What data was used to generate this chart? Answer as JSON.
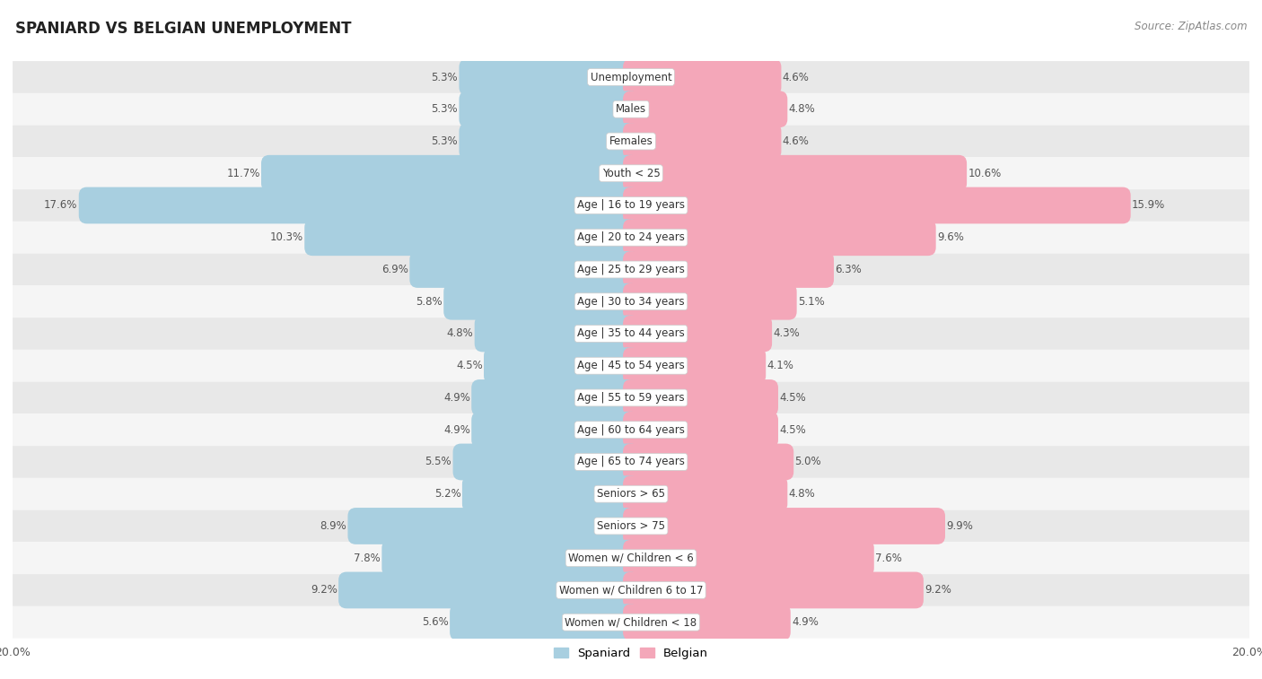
{
  "title": "SPANIARD VS BELGIAN UNEMPLOYMENT",
  "source": "Source: ZipAtlas.com",
  "categories": [
    "Unemployment",
    "Males",
    "Females",
    "Youth < 25",
    "Age | 16 to 19 years",
    "Age | 20 to 24 years",
    "Age | 25 to 29 years",
    "Age | 30 to 34 years",
    "Age | 35 to 44 years",
    "Age | 45 to 54 years",
    "Age | 55 to 59 years",
    "Age | 60 to 64 years",
    "Age | 65 to 74 years",
    "Seniors > 65",
    "Seniors > 75",
    "Women w/ Children < 6",
    "Women w/ Children 6 to 17",
    "Women w/ Children < 18"
  ],
  "spaniard": [
    5.3,
    5.3,
    5.3,
    11.7,
    17.6,
    10.3,
    6.9,
    5.8,
    4.8,
    4.5,
    4.9,
    4.9,
    5.5,
    5.2,
    8.9,
    7.8,
    9.2,
    5.6
  ],
  "belgian": [
    4.6,
    4.8,
    4.6,
    10.6,
    15.9,
    9.6,
    6.3,
    5.1,
    4.3,
    4.1,
    4.5,
    4.5,
    5.0,
    4.8,
    9.9,
    7.6,
    9.2,
    4.9
  ],
  "spaniard_color": "#a8cfe0",
  "belgian_color": "#f4a7b9",
  "row_bg_odd": "#e8e8e8",
  "row_bg_even": "#f5f5f5",
  "max_value": 20.0,
  "bar_height": 0.62,
  "label_fontsize": 8.5,
  "title_fontsize": 12,
  "source_fontsize": 8.5,
  "value_fontsize": 8.5
}
